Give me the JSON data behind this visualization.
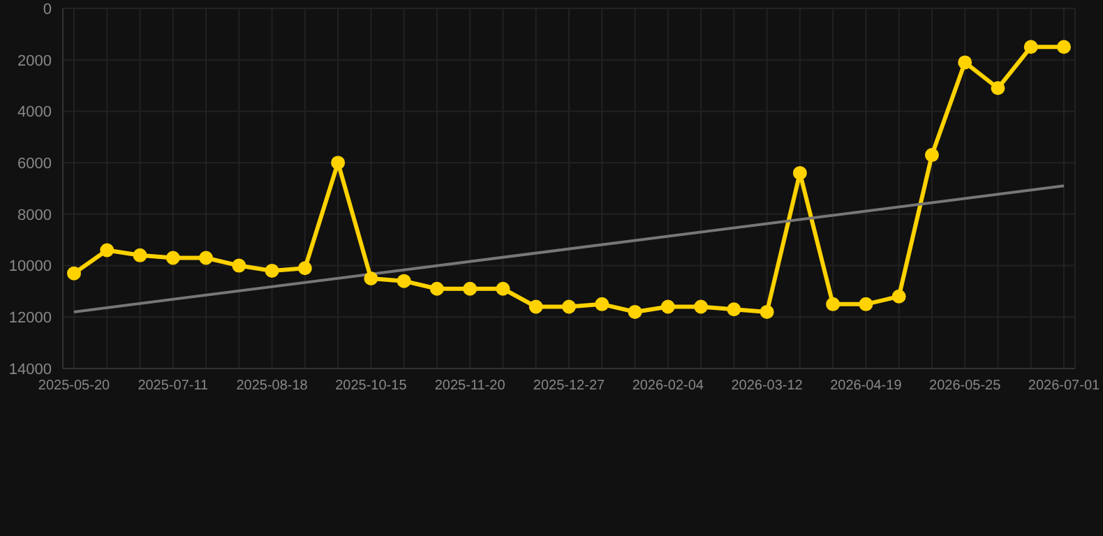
{
  "chart_data": {
    "type": "line",
    "categories": [
      "2025-05-20",
      null,
      null,
      "2025-07-11",
      null,
      null,
      "2025-08-18",
      null,
      null,
      "2025-10-15",
      null,
      null,
      "2025-11-20",
      null,
      null,
      "2025-12-27",
      null,
      null,
      "2026-02-04",
      null,
      null,
      "2026-03-12",
      null,
      null,
      "2026-04-19",
      null,
      null,
      "2026-05-25",
      null,
      null,
      "2026-07-01"
    ],
    "series": [
      {
        "color": "#ffd200",
        "marker": "circle",
        "values": [
          10300,
          9400,
          9600,
          9700,
          9700,
          10000,
          10200,
          10100,
          6000,
          10500,
          10600,
          10900,
          10900,
          10900,
          11600,
          11600,
          11500,
          11800,
          11600,
          11600,
          11700,
          11800,
          6400,
          11500,
          11500,
          11200,
          5700,
          2100,
          3100,
          1500,
          1500
        ]
      },
      {
        "color": "#777777",
        "marker": "none",
        "values": [
          11800,
          null,
          null,
          null,
          null,
          null,
          null,
          null,
          null,
          null,
          null,
          null,
          null,
          null,
          null,
          null,
          null,
          null,
          null,
          null,
          null,
          null,
          null,
          null,
          null,
          null,
          null,
          null,
          null,
          null,
          6900
        ]
      }
    ],
    "ylim": [
      14000,
      0
    ],
    "yticks": [
      0,
      2000,
      4000,
      6000,
      8000,
      10000,
      12000,
      14000
    ],
    "grid": true,
    "legend": false
  }
}
